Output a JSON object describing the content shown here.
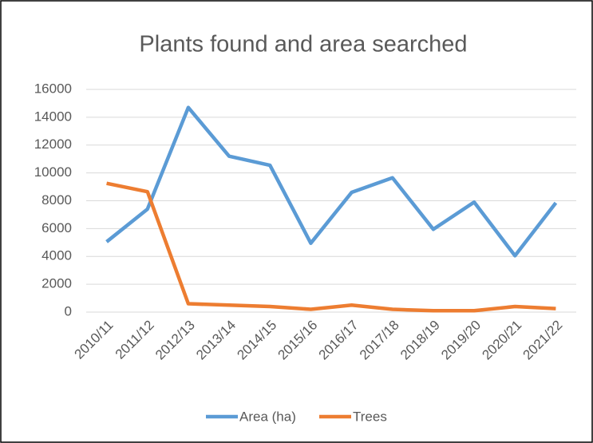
{
  "chart_data": {
    "type": "line",
    "title": "Plants found and area searched",
    "categories": [
      "2010/11",
      "2011/12",
      "2012/13",
      "2013/14",
      "2014/15",
      "2015/16",
      "2016/17",
      "2017/18",
      "2018/19",
      "2019/20",
      "2020/21",
      "2021/22"
    ],
    "series": [
      {
        "name": "Area (ha)",
        "color": "#5b9bd5",
        "values": [
          5050,
          7400,
          14700,
          11200,
          10550,
          4950,
          8600,
          9650,
          5950,
          7900,
          4050,
          7850
        ]
      },
      {
        "name": "Trees",
        "color": "#ed7d31",
        "values": [
          9250,
          8650,
          600,
          500,
          400,
          200,
          500,
          200,
          100,
          100,
          400,
          250
        ]
      }
    ],
    "ylim": [
      0,
      16000
    ],
    "yticks": [
      0,
      2000,
      4000,
      6000,
      8000,
      10000,
      12000,
      14000,
      16000
    ],
    "grid": true,
    "legend": "bottom"
  }
}
